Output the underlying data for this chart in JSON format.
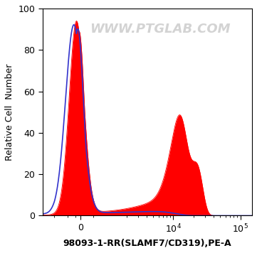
{
  "title": "",
  "xlabel": "98093-1-RR(SLAMF7/CD319),PE-A",
  "ylabel": "Relative Cell  Number",
  "watermark": "WWW.PTGLAB.COM",
  "ylim": [
    0,
    100
  ],
  "background_color": "#ffffff",
  "plot_bg_color": "#ffffff",
  "red_color": "#ff0000",
  "blue_color": "#3333cc",
  "label_fontsize": 9,
  "watermark_fontsize": 13,
  "watermark_color": "#cccccc",
  "symlog_linthresh": 1000,
  "symlog_linscale": 0.35,
  "xlim_left": -1500,
  "xlim_right": 150000
}
